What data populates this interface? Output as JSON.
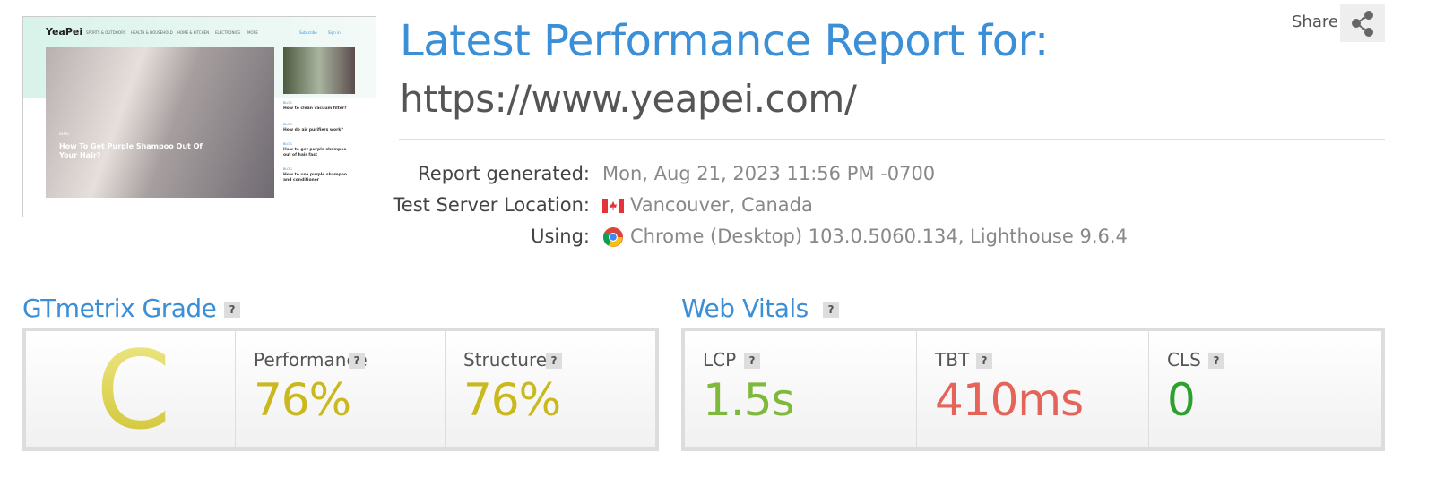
{
  "header": {
    "share": "Share",
    "title": "Latest Performance Report for:",
    "url": "https://www.yeapei.com/"
  },
  "details": [
    {
      "label": "Report generated:",
      "value": "Mon, Aug 21, 2023 11:56 PM -0700"
    },
    {
      "label": "Test Server Location:",
      "value": "Vancouver, Canada"
    },
    {
      "label": "Using:",
      "value": "Chrome (Desktop) 103.0.5060.134, Lighthouse 9.6.4"
    }
  ],
  "thumbnail": {
    "logo": "YeaPei",
    "nav": [
      "SPORTS & OUTDOORS",
      "HEALTH & HOUSEHOLD",
      "HOME & KITCHEN",
      "ELECTRONICS",
      "MORE"
    ],
    "actions": [
      "Subscribe",
      "Sign in"
    ],
    "hero": {
      "tag": "BLOG",
      "title": "How To Get Purple Shampoo Out Of Your Hair?"
    },
    "sidebar": [
      {
        "tag": "BLOG",
        "title": "How to clean vacuum filter?"
      },
      {
        "tag": "BLOG",
        "title": "How do air purifiers work?"
      },
      {
        "tag": "BLOG",
        "title": "How to get purple shampoo out of hair fast"
      },
      {
        "tag": "BLOG",
        "title": "How to use purple shampoo and conditioner"
      }
    ]
  },
  "grade": {
    "title": "GTmetrix Grade",
    "help": "?",
    "grade": "C",
    "metrics": [
      {
        "label": "Performance",
        "help": "?",
        "value": "76%"
      },
      {
        "label": "Structure",
        "help": "?",
        "value": "76%"
      }
    ]
  },
  "web_vitals": {
    "title": "Web Vitals",
    "help": "?",
    "metrics": [
      {
        "label": "LCP",
        "help": "?",
        "value": "1.5s"
      },
      {
        "label": "TBT",
        "help": "?",
        "value": "410ms"
      },
      {
        "label": "CLS",
        "help": "?",
        "value": "0"
      }
    ]
  }
}
